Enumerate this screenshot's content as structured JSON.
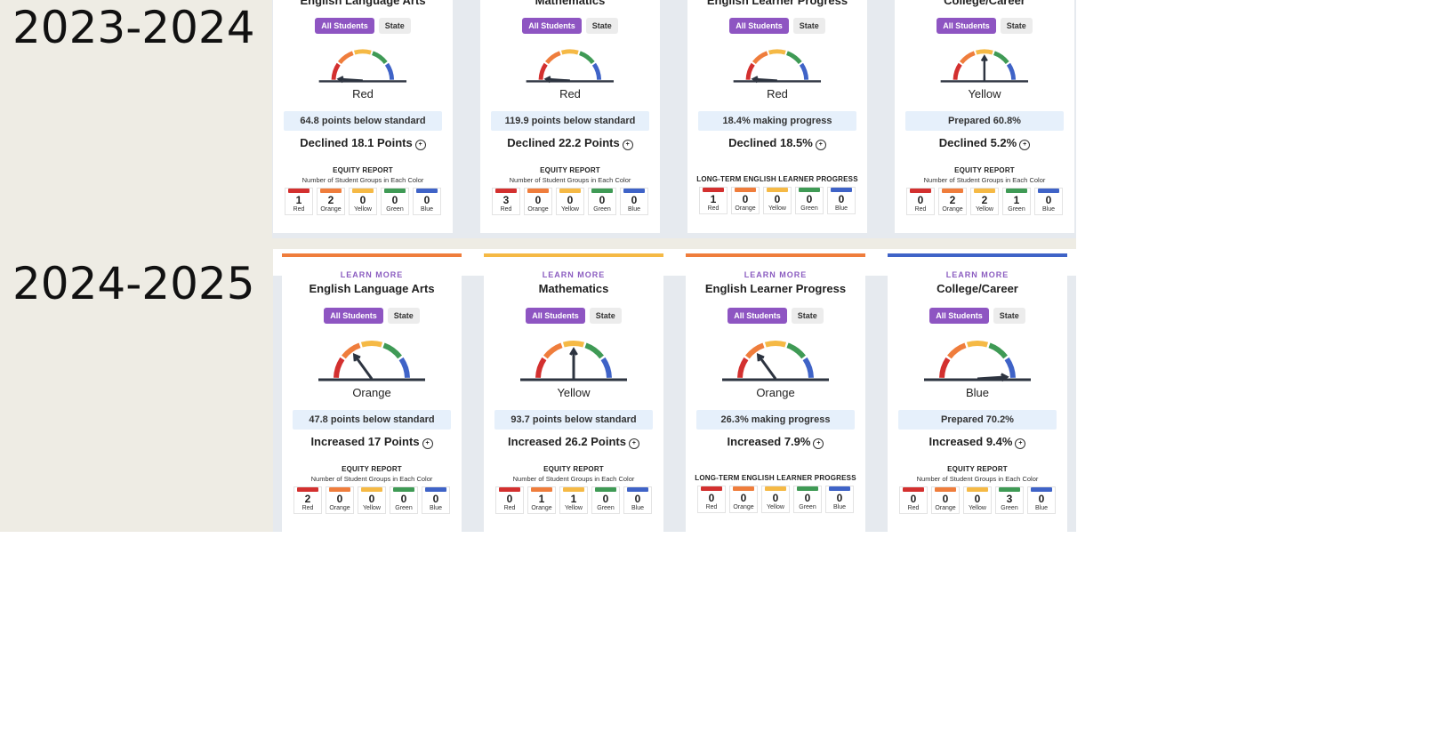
{
  "colors": {
    "red": "#d3302f",
    "orange": "#ef7d3c",
    "yellow": "#f5b945",
    "green": "#3f9a55",
    "blue": "#3f63c7"
  },
  "years": [
    {
      "label": "2023-2024",
      "cards": [
        {
          "learn_more": "",
          "title": "English Language Arts",
          "toggle": [
            "All Students",
            "State"
          ],
          "level": 0,
          "status": "Red",
          "metric": "64.8 points below standard",
          "change": "Declined 18.1 Points",
          "equity_title": "EQUITY REPORT",
          "equity_sub": "Number of Student Groups in Each Color",
          "counts": [
            {
              "n": "1",
              "label": "Red"
            },
            {
              "n": "2",
              "label": "Orange"
            },
            {
              "n": "0",
              "label": "Yellow"
            },
            {
              "n": "0",
              "label": "Green"
            },
            {
              "n": "0",
              "label": "Blue"
            }
          ]
        },
        {
          "learn_more": "",
          "title": "Mathematics",
          "toggle": [
            "All Students",
            "State"
          ],
          "level": 0,
          "status": "Red",
          "metric": "119.9 points below standard",
          "change": "Declined 22.2 Points",
          "equity_title": "EQUITY REPORT",
          "equity_sub": "Number of Student Groups in Each Color",
          "counts": [
            {
              "n": "3",
              "label": "Red"
            },
            {
              "n": "0",
              "label": "Orange"
            },
            {
              "n": "0",
              "label": "Yellow"
            },
            {
              "n": "0",
              "label": "Green"
            },
            {
              "n": "0",
              "label": "Blue"
            }
          ]
        },
        {
          "learn_more": "",
          "title": "English Learner Progress",
          "toggle": [
            "All Students",
            "State"
          ],
          "level": 0,
          "status": "Red",
          "metric": "18.4% making progress",
          "change": "Declined 18.5%",
          "equity_title": "LONG-TERM ENGLISH LEARNER PROGRESS",
          "equity_sub": "",
          "counts": [
            {
              "n": "1",
              "label": "Red"
            },
            {
              "n": "0",
              "label": "Orange"
            },
            {
              "n": "0",
              "label": "Yellow"
            },
            {
              "n": "0",
              "label": "Green"
            },
            {
              "n": "0",
              "label": "Blue"
            }
          ]
        },
        {
          "learn_more": "",
          "title": "College/Career",
          "toggle": [
            "All Students",
            "State"
          ],
          "level": 2,
          "status": "Yellow",
          "metric": "Prepared 60.8%",
          "change": "Declined 5.2%",
          "equity_title": "EQUITY REPORT",
          "equity_sub": "Number of Student Groups in Each Color",
          "counts": [
            {
              "n": "0",
              "label": "Red"
            },
            {
              "n": "2",
              "label": "Orange"
            },
            {
              "n": "2",
              "label": "Yellow"
            },
            {
              "n": "1",
              "label": "Green"
            },
            {
              "n": "0",
              "label": "Blue"
            }
          ]
        }
      ]
    },
    {
      "label": "2024-2025",
      "cards": [
        {
          "learn_more": "LEARN MORE",
          "title": "English Language Arts",
          "toggle": [
            "All Students",
            "State"
          ],
          "level": 1,
          "status": "Orange",
          "metric": "47.8 points below standard",
          "change": "Increased 17 Points",
          "equity_title": "EQUITY REPORT",
          "equity_sub": "Number of Student Groups in Each Color",
          "counts": [
            {
              "n": "2",
              "label": "Red"
            },
            {
              "n": "0",
              "label": "Orange"
            },
            {
              "n": "0",
              "label": "Yellow"
            },
            {
              "n": "0",
              "label": "Green"
            },
            {
              "n": "0",
              "label": "Blue"
            }
          ]
        },
        {
          "learn_more": "LEARN MORE",
          "title": "Mathematics",
          "toggle": [
            "All Students",
            "State"
          ],
          "level": 2,
          "status": "Yellow",
          "metric": "93.7 points below standard",
          "change": "Increased 26.2 Points",
          "equity_title": "EQUITY REPORT",
          "equity_sub": "Number of Student Groups in Each Color",
          "counts": [
            {
              "n": "0",
              "label": "Red"
            },
            {
              "n": "1",
              "label": "Orange"
            },
            {
              "n": "1",
              "label": "Yellow"
            },
            {
              "n": "0",
              "label": "Green"
            },
            {
              "n": "0",
              "label": "Blue"
            }
          ]
        },
        {
          "learn_more": "LEARN MORE",
          "title": "English Learner Progress",
          "toggle": [
            "All Students",
            "State"
          ],
          "level": 1,
          "status": "Orange",
          "metric": "26.3% making progress",
          "change": "Increased 7.9%",
          "equity_title": "LONG-TERM ENGLISH LEARNER PROGRESS",
          "equity_sub": "",
          "counts": [
            {
              "n": "0",
              "label": "Red"
            },
            {
              "n": "0",
              "label": "Orange"
            },
            {
              "n": "0",
              "label": "Yellow"
            },
            {
              "n": "0",
              "label": "Green"
            },
            {
              "n": "0",
              "label": "Blue"
            }
          ]
        },
        {
          "learn_more": "LEARN MORE",
          "title": "College/Career",
          "toggle": [
            "All Students",
            "State"
          ],
          "level": 4,
          "status": "Blue",
          "metric": "Prepared 70.2%",
          "change": "Increased 9.4%",
          "equity_title": "EQUITY REPORT",
          "equity_sub": "Number of Student Groups in Each Color",
          "counts": [
            {
              "n": "0",
              "label": "Red"
            },
            {
              "n": "0",
              "label": "Orange"
            },
            {
              "n": "0",
              "label": "Yellow"
            },
            {
              "n": "3",
              "label": "Green"
            },
            {
              "n": "0",
              "label": "Blue"
            }
          ]
        }
      ]
    }
  ]
}
